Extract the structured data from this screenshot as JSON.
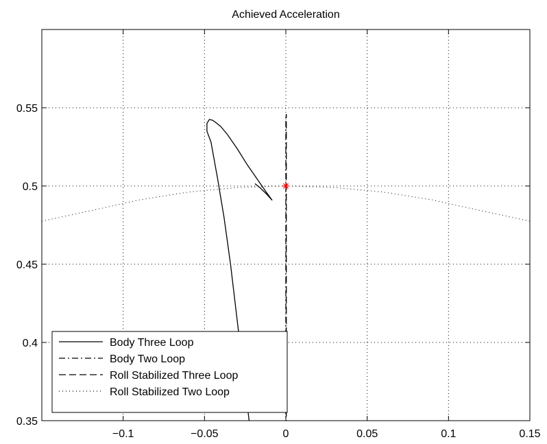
{
  "chart_data": {
    "type": "line",
    "title": "Achieved Acceleration",
    "xlabel": "",
    "ylabel": "",
    "xlim": [
      -0.15,
      0.15
    ],
    "ylim": [
      0.35,
      0.6
    ],
    "grid": true,
    "legend_position": "bottom-left",
    "x_ticks": [
      -0.1,
      -0.05,
      0,
      0.05,
      0.1,
      0.15
    ],
    "x_tick_labels": [
      "−0.1",
      "−0.05",
      "0",
      "0.05",
      "0.1",
      "0.15"
    ],
    "y_ticks": [
      0.35,
      0.4,
      0.45,
      0.5,
      0.55
    ],
    "y_tick_labels": [
      "0.35",
      "0.4",
      "0.45",
      "0.5",
      "0.55"
    ],
    "series": [
      {
        "name": "Body Three Loop",
        "style": "solid",
        "color": "#000000",
        "x": [
          -0.022,
          -0.026,
          -0.03,
          -0.034,
          -0.038,
          -0.042,
          -0.046,
          -0.0485,
          -0.0485,
          -0.047,
          -0.045,
          -0.043,
          -0.04,
          -0.036,
          -0.03,
          -0.024,
          -0.018,
          -0.012,
          -0.0085,
          -0.012,
          -0.016,
          -0.019
        ],
        "y": [
          0.345,
          0.38,
          0.415,
          0.45,
          0.48,
          0.505,
          0.528,
          0.535,
          0.54,
          0.5425,
          0.542,
          0.5405,
          0.538,
          0.533,
          0.524,
          0.514,
          0.505,
          0.496,
          0.491,
          0.495,
          0.499,
          0.5015
        ]
      },
      {
        "name": "Body Two Loop",
        "style": "dashdot",
        "color": "#000000",
        "x": [
          0,
          0
        ],
        "y": [
          0.346,
          0.546
        ]
      },
      {
        "name": "Roll Stabilized Three Loop",
        "style": "dashed",
        "color": "#000000",
        "x": [
          0.0003,
          0.0003
        ],
        "y": [
          0.346,
          0.546
        ]
      },
      {
        "name": "Roll Stabilized Two Loop",
        "style": "dotted",
        "color": "#000000",
        "x": [
          -0.15,
          -0.12,
          -0.09,
          -0.06,
          -0.03,
          0,
          0.03,
          0.06,
          0.09,
          0.12,
          0.15
        ],
        "y": [
          0.4775,
          0.4842,
          0.4911,
          0.4961,
          0.499,
          0.5,
          0.499,
          0.4961,
          0.4911,
          0.4842,
          0.4775
        ]
      }
    ],
    "target_marker": {
      "x": 0,
      "y": 0.5,
      "symbol": "*",
      "color": "#ff0000"
    }
  }
}
